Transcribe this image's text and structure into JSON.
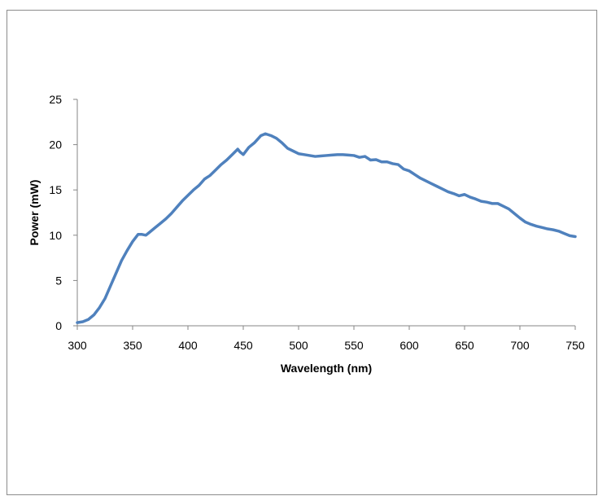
{
  "chart_data": {
    "type": "line",
    "xlabel": "Wavelength (nm)",
    "ylabel": "Power (mW)",
    "xlim": [
      300,
      750
    ],
    "ylim": [
      0,
      25
    ],
    "x_ticks": [
      "300",
      "350",
      "400",
      "450",
      "500",
      "550",
      "600",
      "650",
      "700",
      "750"
    ],
    "y_ticks": [
      "0",
      "5",
      "10",
      "15",
      "20",
      "25"
    ],
    "grid": false,
    "legend": "none",
    "series": [
      {
        "color": "#4f81bd",
        "x": [
          300,
          305,
          310,
          315,
          320,
          325,
          330,
          335,
          340,
          345,
          350,
          355,
          358,
          362,
          365,
          370,
          375,
          380,
          385,
          390,
          395,
          400,
          405,
          410,
          415,
          420,
          425,
          430,
          435,
          440,
          445,
          447,
          450,
          455,
          460,
          463,
          466,
          470,
          475,
          480,
          485,
          490,
          495,
          500,
          505,
          510,
          515,
          520,
          525,
          530,
          535,
          540,
          545,
          550,
          555,
          560,
          565,
          570,
          575,
          580,
          585,
          590,
          595,
          600,
          605,
          610,
          615,
          620,
          625,
          630,
          635,
          640,
          645,
          650,
          655,
          660,
          665,
          670,
          675,
          680,
          685,
          690,
          695,
          700,
          705,
          710,
          715,
          720,
          725,
          730,
          735,
          740,
          745,
          750
        ],
        "y": [
          0.35,
          0.45,
          0.7,
          1.2,
          2.0,
          3.0,
          4.4,
          5.8,
          7.2,
          8.3,
          9.3,
          10.1,
          10.1,
          10.0,
          10.3,
          10.8,
          11.3,
          11.8,
          12.4,
          13.1,
          13.8,
          14.4,
          15.0,
          15.5,
          16.2,
          16.6,
          17.2,
          17.8,
          18.3,
          18.9,
          19.5,
          19.2,
          18.9,
          19.7,
          20.2,
          20.6,
          21.0,
          21.2,
          21.0,
          20.7,
          20.2,
          19.6,
          19.3,
          19.0,
          18.9,
          18.8,
          18.7,
          18.75,
          18.8,
          18.85,
          18.9,
          18.9,
          18.85,
          18.8,
          18.6,
          18.7,
          18.3,
          18.35,
          18.1,
          18.1,
          17.9,
          17.8,
          17.3,
          17.1,
          16.7,
          16.3,
          16.0,
          15.7,
          15.4,
          15.1,
          14.8,
          14.6,
          14.35,
          14.5,
          14.2,
          14.0,
          13.75,
          13.65,
          13.5,
          13.5,
          13.2,
          12.9,
          12.4,
          11.9,
          11.45,
          11.2,
          11.0,
          10.85,
          10.7,
          10.6,
          10.45,
          10.2,
          9.95,
          9.85
        ]
      }
    ]
  }
}
